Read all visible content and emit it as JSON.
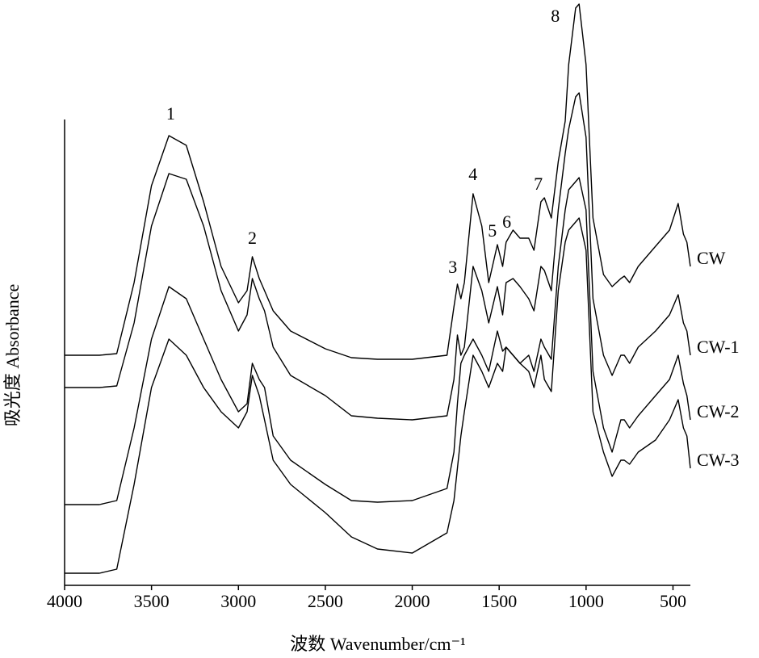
{
  "chart_data": {
    "type": "line",
    "xlabel": "波数 Wavenumber/cm⁻¹",
    "ylabel": "吸光度 Absorbance",
    "x": [
      4000,
      3800,
      3700,
      3600,
      3500,
      3400,
      3300,
      3200,
      3100,
      3000,
      2950,
      2920,
      2880,
      2850,
      2800,
      2700,
      2500,
      2350,
      2200,
      2000,
      1800,
      1760,
      1740,
      1720,
      1700,
      1650,
      1600,
      1560,
      1510,
      1480,
      1460,
      1420,
      1380,
      1330,
      1300,
      1260,
      1240,
      1200,
      1160,
      1120,
      1100,
      1060,
      1040,
      1000,
      960,
      900,
      850,
      800,
      780,
      750,
      700,
      600,
      520,
      470,
      440,
      420,
      400
    ],
    "series": [
      {
        "name": "CW",
        "color": "#000000",
        "values": [
          285,
          285,
          287,
          375,
          495,
          557,
          545,
          475,
          395,
          350,
          365,
          407,
          380,
          365,
          340,
          315,
          293,
          282,
          280,
          280,
          285,
          345,
          373,
          355,
          375,
          485,
          445,
          375,
          422,
          395,
          425,
          440,
          430,
          430,
          415,
          475,
          480,
          455,
          525,
          575,
          645,
          715,
          720,
          645,
          455,
          385,
          370,
          380,
          383,
          375,
          395,
          420,
          440,
          473,
          435,
          425,
          395
        ]
      },
      {
        "name": "CW-1",
        "color": "#000000",
        "values": [
          245,
          245,
          247,
          325,
          445,
          510,
          503,
          445,
          365,
          315,
          335,
          380,
          355,
          340,
          295,
          260,
          235,
          210,
          207,
          205,
          210,
          255,
          310,
          285,
          295,
          395,
          365,
          325,
          370,
          335,
          375,
          380,
          370,
          355,
          340,
          395,
          390,
          365,
          465,
          535,
          565,
          605,
          610,
          555,
          355,
          285,
          260,
          285,
          285,
          275,
          295,
          315,
          335,
          360,
          325,
          315,
          285
        ]
      },
      {
        "name": "CW-2",
        "color": "#000000",
        "values": [
          100,
          100,
          105,
          195,
          305,
          370,
          355,
          305,
          255,
          215,
          225,
          275,
          255,
          245,
          185,
          155,
          125,
          105,
          103,
          105,
          120,
          165,
          225,
          275,
          285,
          305,
          285,
          265,
          315,
          290,
          295,
          285,
          275,
          285,
          265,
          305,
          295,
          280,
          395,
          465,
          490,
          500,
          505,
          465,
          265,
          195,
          165,
          205,
          205,
          195,
          210,
          235,
          255,
          285,
          250,
          235,
          205
        ]
      },
      {
        "name": "CW-3",
        "color": "#000000",
        "values": [
          15,
          15,
          20,
          125,
          245,
          305,
          285,
          245,
          215,
          195,
          215,
          260,
          235,
          205,
          155,
          125,
          90,
          60,
          45,
          40,
          65,
          105,
          145,
          185,
          215,
          285,
          265,
          245,
          275,
          265,
          295,
          285,
          275,
          265,
          245,
          285,
          255,
          240,
          365,
          425,
          440,
          450,
          455,
          415,
          215,
          165,
          135,
          155,
          155,
          150,
          165,
          180,
          205,
          230,
          195,
          185,
          145
        ]
      }
    ],
    "annotations": [
      {
        "text": "1",
        "x": 3390,
        "y": 582
      },
      {
        "text": "2",
        "x": 2920,
        "y": 428
      },
      {
        "text": "3",
        "x": 1767,
        "y": 392
      },
      {
        "text": "4",
        "x": 1651,
        "y": 507
      },
      {
        "text": "5",
        "x": 1539,
        "y": 437
      },
      {
        "text": "6",
        "x": 1456,
        "y": 448
      },
      {
        "text": "7",
        "x": 1275,
        "y": 495
      },
      {
        "text": "8",
        "x": 1177,
        "y": 703
      }
    ],
    "xlim": [
      4000,
      400
    ],
    "xticks": [
      4000,
      3500,
      3000,
      2500,
      2000,
      1500,
      1000,
      500
    ],
    "ylim": [
      0,
      725
    ]
  }
}
